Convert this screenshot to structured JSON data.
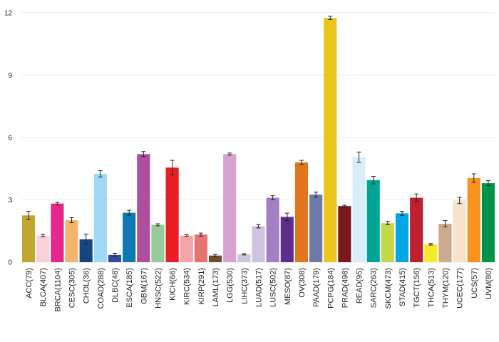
{
  "chart_data": {
    "type": "bar",
    "title": "",
    "xlabel": "",
    "ylabel": "",
    "ylim": [
      0,
      12.2
    ],
    "yticks": [
      0,
      3,
      6,
      9,
      12
    ],
    "grid": true,
    "error_bars": true,
    "categories": [
      "ACC(79)",
      "BLCA(407)",
      "BRCA(1104)",
      "CESC(305)",
      "CHOL(36)",
      "COAD(288)",
      "DLBC(48)",
      "ESCA(185)",
      "GBM(167)",
      "HNSC(522)",
      "KICH(66)",
      "KIRC(534)",
      "KIRP(291)",
      "LAML(173)",
      "LGG(530)",
      "LIHC(373)",
      "LUAD(517)",
      "LUSC(502)",
      "MESO(87)",
      "OV(308)",
      "PAAD(179)",
      "PCPG(184)",
      "PRAD(498)",
      "READ(95)",
      "SARC(263)",
      "SKCM(473)",
      "STAD(415)",
      "TGCT(156)",
      "THCA(513)",
      "THYM(120)",
      "UCEC(177)",
      "UCS(57)",
      "UVM(80)"
    ],
    "values": [
      2.25,
      1.28,
      2.82,
      2.02,
      1.1,
      4.25,
      0.35,
      2.38,
      5.2,
      1.8,
      4.55,
      1.28,
      1.33,
      0.32,
      5.2,
      0.38,
      1.73,
      3.1,
      2.18,
      4.8,
      3.25,
      11.75,
      2.7,
      5.05,
      3.95,
      1.88,
      2.35,
      3.1,
      0.86,
      1.85,
      2.97,
      4.05,
      3.8
    ],
    "errors": [
      0.2,
      0.06,
      0.06,
      0.12,
      0.25,
      0.15,
      0.08,
      0.12,
      0.12,
      0.05,
      0.35,
      0.04,
      0.07,
      0.05,
      0.05,
      0.03,
      0.08,
      0.1,
      0.18,
      0.1,
      0.12,
      0.08,
      0.04,
      0.25,
      0.18,
      0.08,
      0.1,
      0.18,
      0.04,
      0.15,
      0.15,
      0.2,
      0.12
    ],
    "colors": [
      "#c1a72f",
      "#f9d0db",
      "#e7288a",
      "#f3b46e",
      "#17457f",
      "#9ed9f6",
      "#2d4da0",
      "#0d7ab6",
      "#ad4e9e",
      "#96cc9c",
      "#e91e25",
      "#f3a6a7",
      "#e77373",
      "#744d28",
      "#d7a2cf",
      "#cbc5de",
      "#d0c2e1",
      "#a27fc0",
      "#5d2d8d",
      "#e1761f",
      "#6b7ba6",
      "#ecc51c",
      "#7c171b",
      "#d8eef9",
      "#00a596",
      "#c4d843",
      "#00a7e3",
      "#bd202e",
      "#f6ea2c",
      "#cba98a",
      "#f9e2c9",
      "#f7931e",
      "#02934b"
    ]
  }
}
